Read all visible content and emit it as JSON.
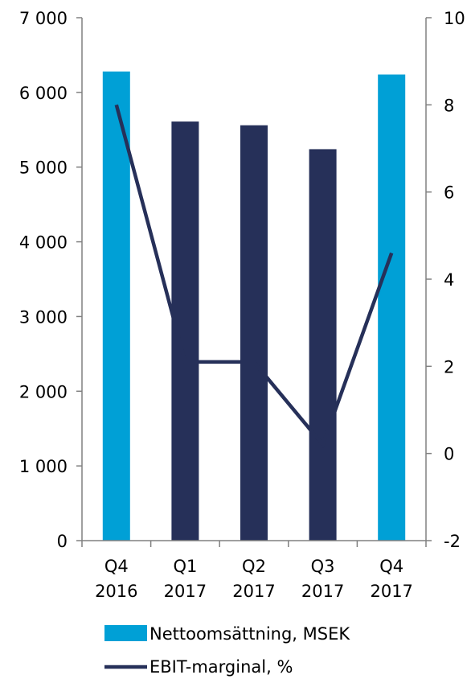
{
  "chart_data": {
    "type": "bar",
    "categories": [
      [
        "Q4",
        "2016"
      ],
      [
        "Q1",
        "2017"
      ],
      [
        "Q2",
        "2017"
      ],
      [
        "Q3",
        "2017"
      ],
      [
        "Q4",
        "2017"
      ]
    ],
    "series": [
      {
        "name": "Nettoomsättning, MSEK",
        "type": "bar",
        "axis": "left",
        "values": [
          6280,
          5610,
          5560,
          5240,
          6240
        ],
        "colors": [
          "#00a0d6",
          "#263059",
          "#263059",
          "#263059",
          "#00a0d6"
        ]
      },
      {
        "name": "EBIT-marginal, %",
        "type": "line",
        "axis": "right",
        "color": "#263059",
        "values": [
          8.0,
          2.1,
          2.1,
          0.2,
          4.6
        ]
      }
    ],
    "y_left": {
      "min": 0,
      "max": 7000,
      "step": 1000,
      "tick_labels": [
        "0",
        "1 000",
        "2 000",
        "3 000",
        "4 000",
        "5 000",
        "6 000",
        "7 000"
      ]
    },
    "y_right": {
      "min": -2,
      "max": 10,
      "step": 2,
      "tick_labels": [
        "-2",
        "0",
        "2",
        "4",
        "6",
        "8",
        "10"
      ]
    },
    "grid": false,
    "legend_position": "bottom"
  }
}
